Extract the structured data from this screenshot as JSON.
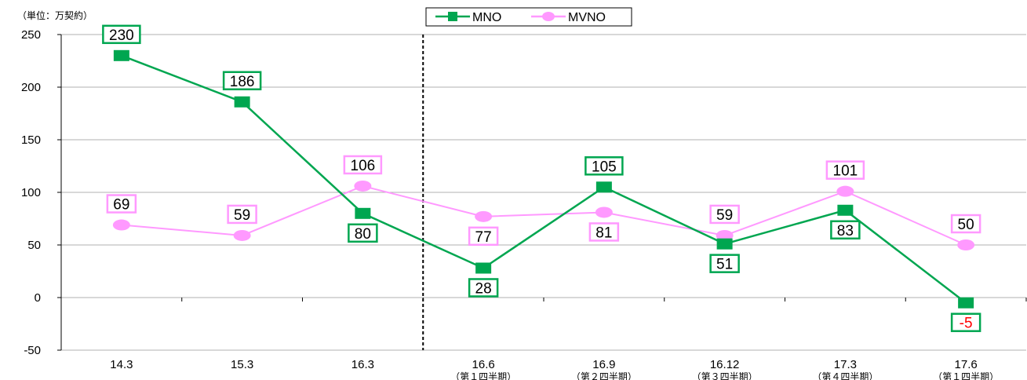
{
  "chart_data": {
    "type": "line",
    "unit_label": "（単位：万契約）",
    "categories": [
      "14.3",
      "15.3",
      "16.3",
      "16.6",
      "16.9",
      "16.12",
      "17.3",
      "17.6"
    ],
    "category_sublabels": [
      "",
      "",
      "",
      "（第１四半期）",
      "（第２四半期）",
      "（第３四半期）",
      "（第４四半期）",
      "（第１四半期）"
    ],
    "ylim": [
      -50,
      250
    ],
    "yticks": [
      -50,
      0,
      50,
      100,
      150,
      200,
      250
    ],
    "grid": true,
    "legend_position": "top-center",
    "divider_after_category": "16.3",
    "series": [
      {
        "name": "MNO",
        "color": "#00A650",
        "marker": "square",
        "values": [
          230,
          186,
          80,
          28,
          105,
          51,
          83,
          -5
        ],
        "label_positions": [
          "above",
          "above",
          "below",
          "below",
          "above",
          "below",
          "below",
          "below"
        ]
      },
      {
        "name": "MVNO",
        "color": "#FF99FF",
        "marker": "circle",
        "values": [
          69,
          59,
          106,
          77,
          81,
          59,
          101,
          50
        ],
        "label_positions": [
          "above",
          "above",
          "above",
          "below",
          "below",
          "above",
          "above",
          "above"
        ]
      }
    ],
    "negative_label_color": "#FF0000"
  }
}
